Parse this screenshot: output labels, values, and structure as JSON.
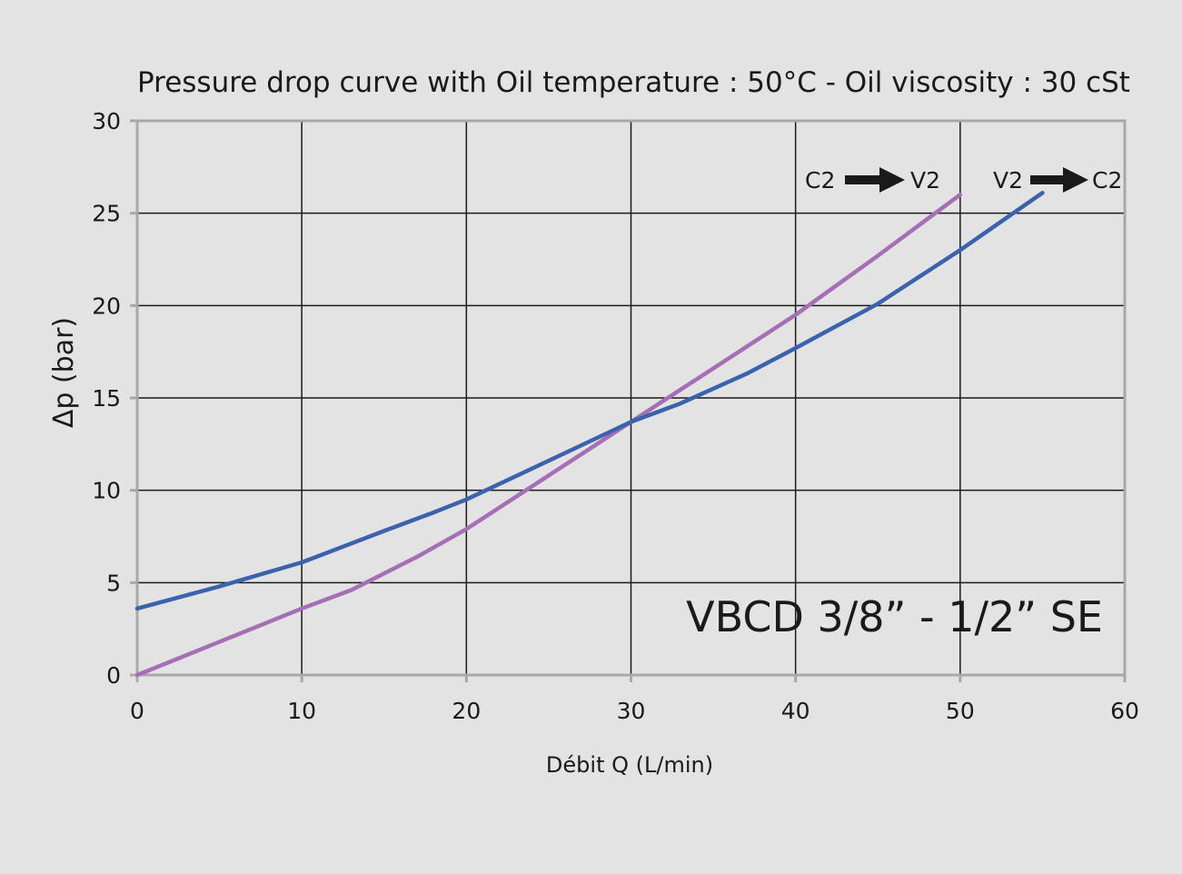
{
  "chart_data": {
    "type": "line",
    "title": "Pressure drop curve with Oil temperature :  50°C - Oil viscosity : 30 cSt",
    "xlabel": "Débit Q (L/min)",
    "ylabel": "Δp (bar)",
    "xlim": [
      0,
      60
    ],
    "ylim": [
      0,
      30
    ],
    "x_ticks": [
      0,
      10,
      20,
      30,
      40,
      50,
      60
    ],
    "y_ticks": [
      0,
      5,
      10,
      15,
      20,
      25,
      30
    ],
    "grid": true,
    "series": [
      {
        "name": "C2 → V2",
        "color": "#a66fb5",
        "x": [
          0,
          5,
          10,
          13,
          17,
          20,
          25,
          30,
          35,
          40,
          45,
          50
        ],
        "y": [
          0,
          1.8,
          3.6,
          4.6,
          6.4,
          7.9,
          10.8,
          13.7,
          16.6,
          19.5,
          22.7,
          26.0
        ]
      },
      {
        "name": "V2 → C2",
        "color": "#3a62ad",
        "x": [
          0,
          5,
          10,
          15,
          18,
          20,
          25,
          30,
          33,
          37,
          40,
          45,
          50,
          55
        ],
        "y": [
          3.6,
          4.8,
          6.1,
          7.8,
          8.8,
          9.5,
          11.6,
          13.7,
          14.7,
          16.3,
          17.7,
          20.1,
          23.0,
          26.1
        ]
      }
    ],
    "legend": [
      {
        "from": "C2",
        "to": "V2"
      },
      {
        "from": "V2",
        "to": "C2"
      }
    ],
    "annotation": "VBCD 3/8” - 1/2” SE"
  }
}
